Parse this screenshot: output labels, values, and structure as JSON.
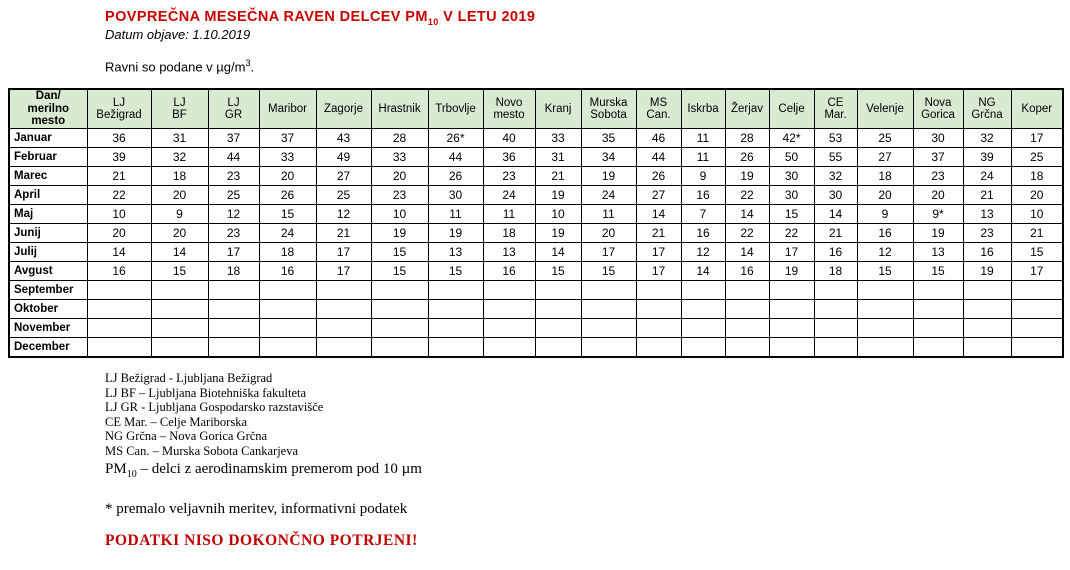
{
  "colors": {
    "title_red": "#cc0000",
    "warning_red": "#c00000",
    "header_green": "#d9ead3",
    "border_black": "#000000"
  },
  "header": {
    "title_prefix": "POVPREČNA MESEČNA RAVEN DELCEV PM",
    "title_sub": "10",
    "title_suffix": " V LETU 2019",
    "date_line": "Datum objave: 1.10.2019",
    "units_prefix": "Ravni so podane v µg/m",
    "units_sup": "3",
    "units_suffix": "."
  },
  "table": {
    "corner_label": "Dan/\nmerilno\nmesto",
    "stations": [
      "LJ\nBežigrad",
      "LJ\nBF",
      "LJ\nGR",
      "Maribor",
      "Zagorje",
      "Hrastnik",
      "Trbovlje",
      "Novo\nmesto",
      "Kranj",
      "Murska\nSobota",
      "MS\nCan.",
      "Iskrba",
      "Žerjav",
      "Celje",
      "CE\nMar.",
      "Velenje",
      "Nova\nGorica",
      "NG\nGrčna",
      "Koper"
    ],
    "months": [
      {
        "label": "Januar",
        "values": [
          "36",
          "31",
          "37",
          "37",
          "43",
          "28",
          "26*",
          "40",
          "33",
          "35",
          "46",
          "11",
          "28",
          "42*",
          "53",
          "25",
          "30",
          "32",
          "17"
        ]
      },
      {
        "label": "Februar",
        "values": [
          "39",
          "32",
          "44",
          "33",
          "49",
          "33",
          "44",
          "36",
          "31",
          "34",
          "44",
          "11",
          "26",
          "50",
          "55",
          "27",
          "37",
          "39",
          "25"
        ]
      },
      {
        "label": "Marec",
        "values": [
          "21",
          "18",
          "23",
          "20",
          "27",
          "20",
          "26",
          "23",
          "21",
          "19",
          "26",
          "9",
          "19",
          "30",
          "32",
          "18",
          "23",
          "24",
          "18"
        ]
      },
      {
        "label": "April",
        "values": [
          "22",
          "20",
          "25",
          "26",
          "25",
          "23",
          "30",
          "24",
          "19",
          "24",
          "27",
          "16",
          "22",
          "30",
          "30",
          "20",
          "20",
          "21",
          "20"
        ]
      },
      {
        "label": "Maj",
        "values": [
          "10",
          "9",
          "12",
          "15",
          "12",
          "10",
          "11",
          "11",
          "10",
          "11",
          "14",
          "7",
          "14",
          "15",
          "14",
          "9",
          "9*",
          "13",
          "10"
        ]
      },
      {
        "label": "Junij",
        "values": [
          "20",
          "20",
          "23",
          "24",
          "21",
          "19",
          "19",
          "18",
          "19",
          "20",
          "21",
          "16",
          "22",
          "22",
          "21",
          "16",
          "19",
          "23",
          "21"
        ]
      },
      {
        "label": "Julij",
        "values": [
          "14",
          "14",
          "17",
          "18",
          "17",
          "15",
          "13",
          "13",
          "14",
          "17",
          "17",
          "12",
          "14",
          "17",
          "16",
          "12",
          "13",
          "16",
          "15"
        ]
      },
      {
        "label": "Avgust",
        "values": [
          "16",
          "15",
          "18",
          "16",
          "17",
          "15",
          "15",
          "16",
          "15",
          "15",
          "17",
          "14",
          "16",
          "19",
          "18",
          "15",
          "15",
          "19",
          "17"
        ]
      },
      {
        "label": "September",
        "values": []
      },
      {
        "label": "Oktober",
        "values": []
      },
      {
        "label": "November",
        "values": []
      },
      {
        "label": "December",
        "values": []
      }
    ]
  },
  "footnotes": [
    "LJ Bežigrad - Ljubljana Bežigrad",
    "LJ BF – Ljubljana Biotehniška fakulteta",
    "LJ GR - Ljubljana Gospodarsko razstavišče",
    "CE Mar. – Celje Mariborska",
    "NG Grčna – Nova Gorica Grčna",
    "MS Can. – Murska Sobota Cankarjeva"
  ],
  "pm10_note": {
    "prefix": "PM",
    "sub": "10",
    "suffix": " – delci z aerodinamskim premerom pod 10 µm"
  },
  "asterisk_note": "* premalo veljavnih meritev, informativni podatek",
  "warning": "PODATKI NISO DOKONČNO POTRJENI!"
}
